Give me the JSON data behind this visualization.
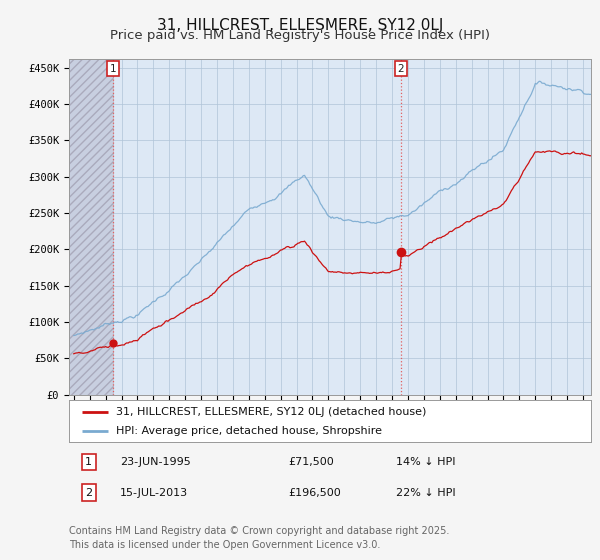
{
  "title": "31, HILLCREST, ELLESMERE, SY12 0LJ",
  "subtitle": "Price paid vs. HM Land Registry's House Price Index (HPI)",
  "ylabel_ticks": [
    "£0",
    "£50K",
    "£100K",
    "£150K",
    "£200K",
    "£250K",
    "£300K",
    "£350K",
    "£400K",
    "£450K"
  ],
  "ytick_values": [
    0,
    50000,
    100000,
    150000,
    200000,
    250000,
    300000,
    350000,
    400000,
    450000
  ],
  "ylim": [
    0,
    462000
  ],
  "xlim_start": 1992.7,
  "xlim_end": 2025.5,
  "hpi_color": "#7aaad0",
  "price_color": "#cc1111",
  "marker_color": "#cc1111",
  "dashed_line_color": "#e06060",
  "annotation_box_color": "#cc2222",
  "purchase1_x": 1995.47,
  "purchase1_y": 71500,
  "purchase1_label": "1",
  "purchase2_x": 2013.54,
  "purchase2_y": 196500,
  "purchase2_label": "2",
  "legend_line1": "31, HILLCREST, ELLESMERE, SY12 0LJ (detached house)",
  "legend_line2": "HPI: Average price, detached house, Shropshire",
  "background_color": "#f5f5f5",
  "plot_bg_color": "#dde8f5",
  "hatch_region_color": "#c8ccd8",
  "grid_color": "#b0c4d8",
  "title_fontsize": 11,
  "subtitle_fontsize": 9.5,
  "tick_fontsize": 7.5,
  "legend_fontsize": 8,
  "footer_fontsize": 7,
  "footer": "Contains HM Land Registry data © Crown copyright and database right 2025.\nThis data is licensed under the Open Government Licence v3.0."
}
